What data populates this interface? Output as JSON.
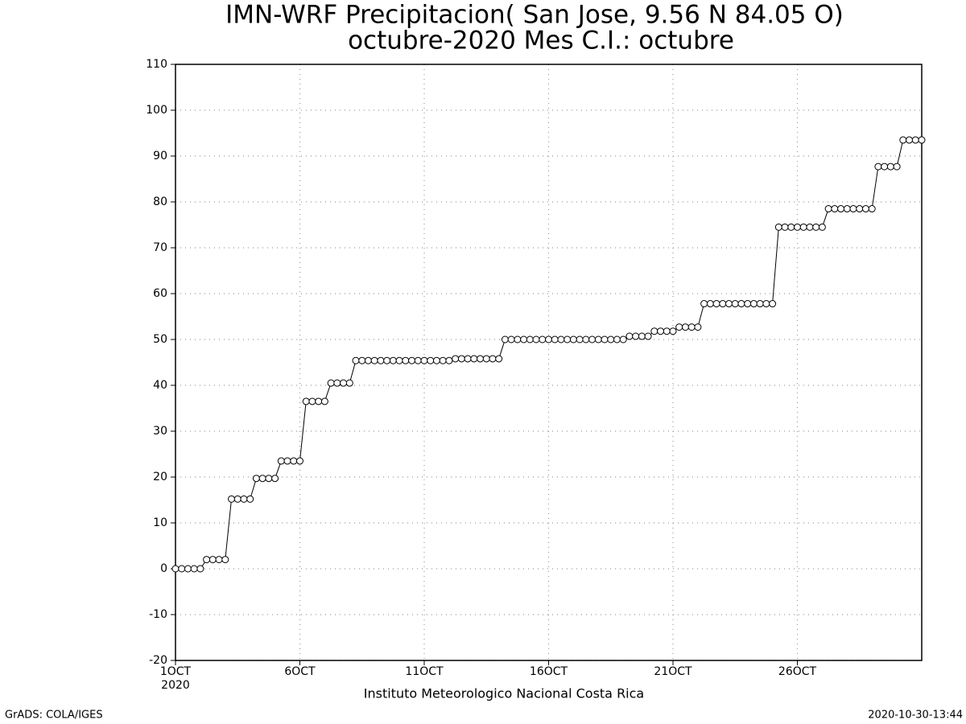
{
  "chart_data": {
    "type": "line",
    "title": "IMN-WRF  Precipitacion( San Jose, 9.56  N 84.05  O)",
    "subtitle": "octubre-2020 Mes C.I.: octubre",
    "xlabel": "Instituto Meteorologico Nacional Costa Rica",
    "x_year_label": "2020",
    "footer_left": "GrADS: COLA/IGES",
    "footer_right": "2020-10-30-13:44",
    "x": [
      1,
      1.25,
      1.5,
      1.75,
      2,
      2.25,
      2.5,
      2.75,
      3,
      3.25,
      3.5,
      3.75,
      4,
      4.25,
      4.5,
      4.75,
      5,
      5.25,
      5.5,
      5.75,
      6,
      6.25,
      6.5,
      6.75,
      7,
      7.25,
      7.5,
      7.75,
      8,
      8.25,
      8.5,
      8.75,
      9,
      9.25,
      9.5,
      9.75,
      10,
      10.25,
      10.5,
      10.75,
      11,
      11.25,
      11.5,
      11.75,
      12,
      12.25,
      12.5,
      12.75,
      13,
      13.25,
      13.5,
      13.75,
      14,
      14.25,
      14.5,
      14.75,
      15,
      15.25,
      15.5,
      15.75,
      16,
      16.25,
      16.5,
      16.75,
      17,
      17.25,
      17.5,
      17.75,
      18,
      18.25,
      18.5,
      18.75,
      19,
      19.25,
      19.5,
      19.75,
      20,
      20.25,
      20.5,
      20.75,
      21,
      21.25,
      21.5,
      21.75,
      22,
      22.25,
      22.5,
      22.75,
      23,
      23.25,
      23.5,
      23.75,
      24,
      24.25,
      24.5,
      24.75,
      25,
      25.25,
      25.5,
      25.75,
      26,
      26.25,
      26.5,
      26.75,
      27,
      27.25,
      27.5,
      27.75,
      28,
      28.25,
      28.5,
      28.75,
      29,
      29.25,
      29.5,
      29.75,
      30,
      30.25,
      30.5,
      30.75,
      31
    ],
    "series": [
      {
        "name": "Precipitacion",
        "color": "#000000",
        "values": [
          0,
          0,
          0,
          0,
          0,
          2,
          2,
          2,
          2,
          15.2,
          15.2,
          15.2,
          15.2,
          19.7,
          19.7,
          19.7,
          19.7,
          23.5,
          23.5,
          23.5,
          23.5,
          36.5,
          36.5,
          36.5,
          36.5,
          40.5,
          40.5,
          40.5,
          40.5,
          45.4,
          45.4,
          45.4,
          45.4,
          45.4,
          45.4,
          45.4,
          45.4,
          45.4,
          45.4,
          45.4,
          45.4,
          45.4,
          45.4,
          45.4,
          45.4,
          45.8,
          45.8,
          45.8,
          45.8,
          45.8,
          45.8,
          45.8,
          45.8,
          50,
          50,
          50,
          50,
          50,
          50,
          50,
          50,
          50,
          50,
          50,
          50,
          50,
          50,
          50,
          50,
          50,
          50,
          50,
          50,
          50.7,
          50.7,
          50.7,
          50.7,
          51.8,
          51.8,
          51.8,
          51.8,
          52.7,
          52.7,
          52.7,
          52.7,
          57.8,
          57.8,
          57.8,
          57.8,
          57.8,
          57.8,
          57.8,
          57.8,
          57.8,
          57.8,
          57.8,
          57.8,
          74.5,
          74.5,
          74.5,
          74.5,
          74.5,
          74.5,
          74.5,
          74.5,
          78.5,
          78.5,
          78.5,
          78.5,
          78.5,
          78.5,
          78.5,
          78.5,
          87.7,
          87.7,
          87.7,
          87.7,
          93.5,
          93.5,
          93.5,
          93.5
        ]
      }
    ],
    "xlim": [
      1,
      31
    ],
    "xticks": [
      {
        "value": 1,
        "label": "1OCT"
      },
      {
        "value": 6,
        "label": "6OCT"
      },
      {
        "value": 11,
        "label": "11OCT"
      },
      {
        "value": 16,
        "label": "16OCT"
      },
      {
        "value": 21,
        "label": "21OCT"
      },
      {
        "value": 26,
        "label": "26OCT"
      }
    ],
    "ylim": [
      -20,
      110
    ],
    "yticks": [
      -20,
      -10,
      0,
      10,
      20,
      30,
      40,
      50,
      60,
      70,
      80,
      90,
      100,
      110
    ],
    "grid": true
  }
}
